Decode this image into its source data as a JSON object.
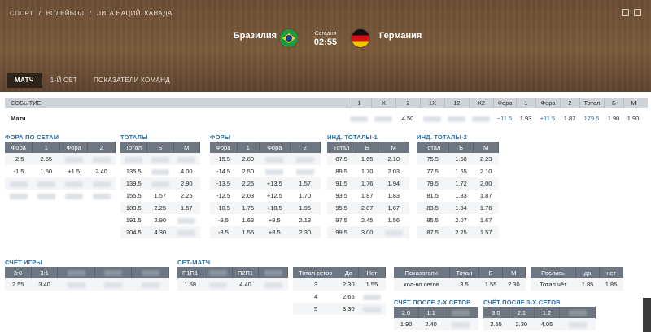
{
  "breadcrumb": [
    "СПОРТ",
    "/",
    "ВОЛЕЙБОЛ",
    "/",
    "ЛИГА НАЦИЙ. КАНАДА"
  ],
  "match": {
    "home": "Бразилия",
    "away": "Германия",
    "day": "Сегодня",
    "time": "02:55"
  },
  "tabs": [
    {
      "label": "МАТЧ",
      "active": true
    },
    {
      "label": "1-Й СЕТ"
    },
    {
      "label": "ПОКАЗАТЕЛИ КОМАНД"
    }
  ],
  "event_table": {
    "headers": [
      "СОБЫТИЕ",
      "1",
      "X",
      "2",
      "1X",
      "12",
      "X2",
      "Фора",
      "1",
      "Фора",
      "2",
      "Тотал",
      "Б",
      "М"
    ],
    "row": [
      "Матч",
      "",
      "",
      "4.50",
      "",
      "",
      "",
      "−11.5",
      "1.93",
      "+11.5",
      "1.87",
      "179.5",
      "1.90",
      "1.90"
    ]
  },
  "fora_sets": {
    "title": "ФОРА ПО СЕТАМ",
    "headers": [
      "Фора",
      "1",
      "Фора",
      "2"
    ],
    "rows": [
      [
        "-2.5",
        "2.55",
        "",
        ""
      ],
      [
        "-1.5",
        "1.50",
        "+1.5",
        "2.40"
      ],
      [
        "",
        "",
        "",
        ""
      ],
      [
        "",
        "",
        "",
        ""
      ]
    ]
  },
  "totals": {
    "title": "ТОТАЛЫ",
    "headers": [
      "Тотал",
      "Б",
      "М"
    ],
    "rows": [
      [
        "",
        "",
        ""
      ],
      [
        "135.5",
        "",
        "4.00"
      ],
      [
        "139.5",
        "",
        "2.90"
      ],
      [
        "155.5",
        "1.57",
        "2.25"
      ],
      [
        "183.5",
        "2.25",
        "1.57"
      ],
      [
        "191.5",
        "2.90",
        ""
      ],
      [
        "204.5",
        "4.30",
        ""
      ]
    ]
  },
  "foras": {
    "title": "ФОРЫ",
    "headers": [
      "Фора",
      "1",
      "Фора",
      "2"
    ],
    "rows": [
      [
        "-15.5",
        "2.80",
        "",
        ""
      ],
      [
        "-14.5",
        "2.50",
        "",
        ""
      ],
      [
        "-13.5",
        "2.25",
        "+13.5",
        "1.57"
      ],
      [
        "-12.5",
        "2.03",
        "+12.5",
        "1.70"
      ],
      [
        "-10.5",
        "1.75",
        "+10.5",
        "1.95"
      ],
      [
        "-9.5",
        "1.63",
        "+9.5",
        "2.13"
      ],
      [
        "-8.5",
        "1.55",
        "+8.5",
        "2.30"
      ]
    ]
  },
  "ind_totals_1": {
    "title": "ИНД. ТОТАЛЫ-1",
    "headers": [
      "Тотал",
      "Б",
      "М"
    ],
    "rows": [
      [
        "87.5",
        "1.65",
        "2.10"
      ],
      [
        "89.5",
        "1.70",
        "2.03"
      ],
      [
        "91.5",
        "1.76",
        "1.94"
      ],
      [
        "93.5",
        "1.87",
        "1.83"
      ],
      [
        "95.5",
        "2.07",
        "1.67"
      ],
      [
        "97.5",
        "2.45",
        "1.56"
      ],
      [
        "99.5",
        "3.00",
        ""
      ]
    ]
  },
  "ind_totals_2": {
    "title": "ИНД. ТОТАЛЫ-2",
    "headers": [
      "Тотал",
      "Б",
      "М"
    ],
    "rows": [
      [
        "75.5",
        "1.58",
        "2.23"
      ],
      [
        "77.5",
        "1.65",
        "2.10"
      ],
      [
        "79.5",
        "1.72",
        "2.00"
      ],
      [
        "81.5",
        "1.83",
        "1.87"
      ],
      [
        "83.5",
        "1.94",
        "1.76"
      ],
      [
        "85.5",
        "2.07",
        "1.67"
      ],
      [
        "87.5",
        "2.25",
        "1.57"
      ]
    ]
  },
  "score_games": {
    "title": "СЧЁТ ИГРЫ",
    "headers": [
      "3:0",
      "3:1",
      "",
      "",
      ""
    ],
    "rows": [
      [
        "2.55",
        "3.40",
        "",
        "",
        ""
      ]
    ]
  },
  "set_match": {
    "title": "СЕТ-МАТЧ",
    "headers": [
      "П1П1",
      "",
      "П2П1",
      ""
    ],
    "rows": [
      [
        "1.58",
        "",
        "4.40",
        ""
      ]
    ]
  },
  "total_sets": {
    "headers": [
      "Тотал сетов",
      "Да",
      "Нет"
    ],
    "rows": [
      [
        "3",
        "2.30",
        "1.55"
      ],
      [
        "4",
        "2.65",
        ""
      ],
      [
        "5",
        "3.30",
        ""
      ]
    ]
  },
  "indicators": {
    "headers": [
      "Показатели",
      "Тотал",
      "Б",
      "М"
    ],
    "rows": [
      [
        "кол-во сетов",
        "3.5",
        "1.55",
        "2.30"
      ]
    ]
  },
  "roslis": {
    "headers": [
      "Рослись",
      "да",
      "нет"
    ],
    "rows": [
      [
        "Тотал чёт",
        "1.85",
        "1.85"
      ]
    ]
  },
  "score_after_2": {
    "title": "СЧЁТ ПОСЛЕ 2-Х СЕТОВ",
    "headers": [
      "2:0",
      "1:1",
      ""
    ],
    "rows": [
      [
        "1.90",
        "2.40",
        ""
      ]
    ]
  },
  "score_after_3": {
    "title": "СЧЁТ ПОСЛЕ 3-Х СЕТОВ",
    "headers": [
      "3:0",
      "2:1",
      "1:2",
      ""
    ],
    "rows": [
      [
        "2.55",
        "2.30",
        "4.05",
        ""
      ]
    ]
  }
}
